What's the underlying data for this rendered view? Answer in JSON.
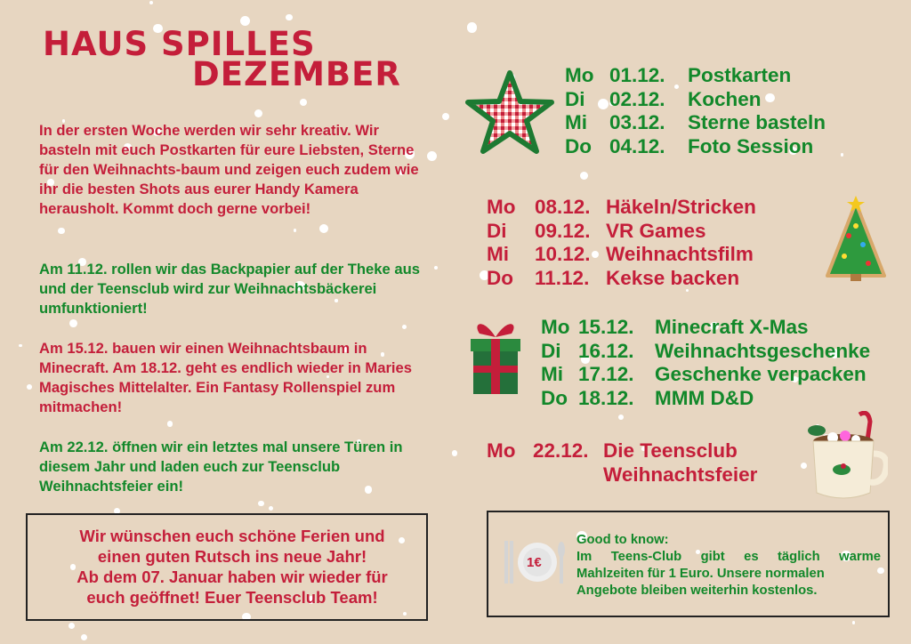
{
  "title": {
    "line1": "HAUS SPILLES",
    "line2": "DEZEMBER"
  },
  "colors": {
    "background": "#e7d6c1",
    "red": "#c41e3a",
    "green": "#12882a"
  },
  "paragraphs": [
    {
      "color": "red",
      "text": "In der ersten Woche werden wir sehr kreativ. Wir basteln mit euch Postkarten für eure Liebsten, Sterne für den Weihnachts-baum und zeigen euch zudem wie ihr die besten Shots aus eurer Handy Kamera herausholt. Kommt doch gerne vorbei!"
    },
    {
      "color": "green",
      "text": "Am 11.12. rollen wir das Backpapier auf der Theke aus und der Teensclub wird zur Weihnachtsbäckerei umfunktioniert!"
    },
    {
      "color": "red",
      "text": "Am 15.12. bauen wir einen Weihnachtsbaum in Minecraft. Am 18.12. geht es endlich wieder in Maries Magisches Mittelalter. Ein Fantasy Rollenspiel zum mitmachen!"
    },
    {
      "color": "green",
      "text": "Am 22.12. öffnen wir ein letztes mal unsere Türen in diesem Jahr und laden euch zur Teensclub Weihnachtsfeier ein!"
    }
  ],
  "farewell": [
    "Wir wünschen euch schöne Ferien und",
    "einen guten Rutsch ins neue Jahr!",
    "Ab dem 07. Januar haben wir wieder für",
    "euch geöffnet! Euer Teensclub Team!"
  ],
  "schedule": [
    {
      "icon": "gingham-star-icon",
      "rows": [
        {
          "day": "Mo",
          "date": "01.12.",
          "event": "Postkarten"
        },
        {
          "day": "Di",
          "date": "02.12.",
          "event": "Kochen"
        },
        {
          "day": "Mi",
          "date": "03.12.",
          "event": "Sterne basteln"
        },
        {
          "day": "Do",
          "date": "04.12.",
          "event": "Foto Session"
        }
      ]
    },
    {
      "icon": "christmas-tree-cookie-icon",
      "rows": [
        {
          "day": "Mo",
          "date": "08.12.",
          "event": "Häkeln/Stricken"
        },
        {
          "day": "Di",
          "date": "09.12.",
          "event": "VR Games"
        },
        {
          "day": "Mi",
          "date": "10.12.",
          "event": "Weihnachtsfilm"
        },
        {
          "day": "Do",
          "date": "11.12.",
          "event": "Kekse backen"
        }
      ]
    },
    {
      "icon": "gift-icon",
      "rows": [
        {
          "day": "Mo",
          "date": "15.12.",
          "event": "Minecraft X-Mas"
        },
        {
          "day": "Di",
          "date": "16.12.",
          "event": "Weihnachtsgeschenke"
        },
        {
          "day": "Mi",
          "date": "17.12.",
          "event": "Geschenke verpacken"
        },
        {
          "day": "Do",
          "date": "18.12.",
          "event": "MMM D&D"
        }
      ]
    },
    {
      "icon": "cocoa-mug-icon",
      "rows": [
        {
          "day": "Mo",
          "date": "22.12.",
          "event": "Die Teensclub"
        },
        {
          "day": "",
          "date": "",
          "event": "Weihnachtsfeier"
        }
      ]
    }
  ],
  "info": {
    "price_badge": "1€",
    "heading": "Good to know:",
    "lines": [
      "Im Teens-Club gibt es täglich warme",
      "Mahlzeiten für 1 Euro. Unsere normalen",
      "Angebote bleiben weiterhin kostenlos."
    ]
  }
}
